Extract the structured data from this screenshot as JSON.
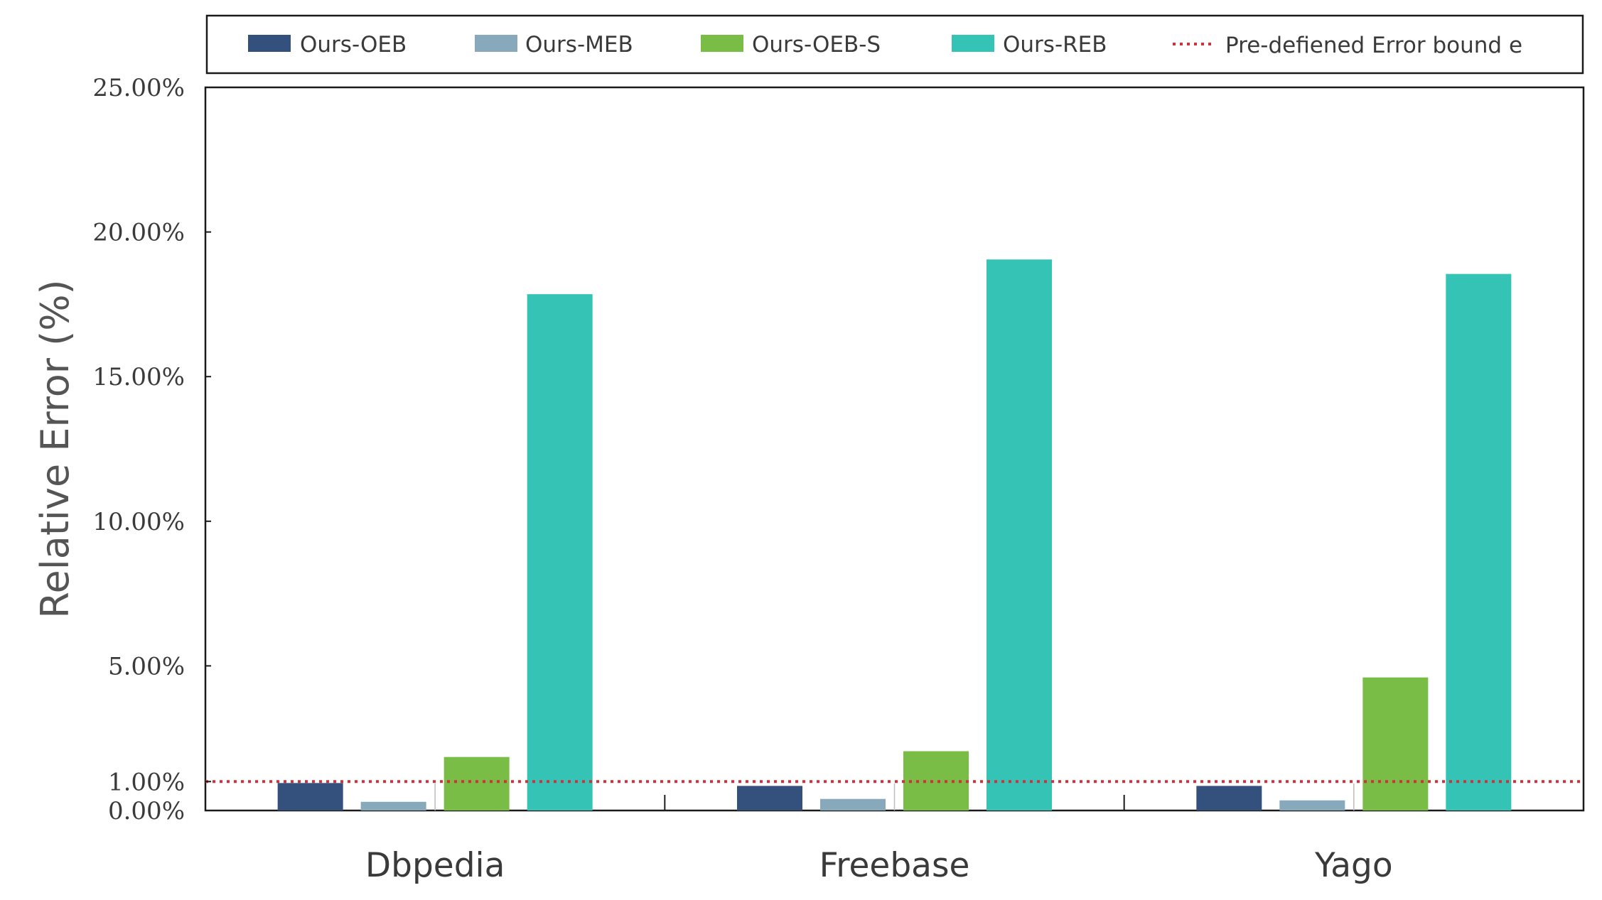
{
  "chart_data": {
    "type": "bar",
    "categories": [
      "Dbpedia",
      "Freebase",
      "Yago"
    ],
    "series": [
      {
        "name": "Ours-OEB",
        "color": "#34507c",
        "values": [
          0.95,
          0.85,
          0.85
        ]
      },
      {
        "name": "Ours-MEB",
        "color": "#88a8bc",
        "values": [
          0.3,
          0.4,
          0.35
        ]
      },
      {
        "name": "Ours-OEB-S",
        "color": "#7abd46",
        "values": [
          1.85,
          2.05,
          4.6
        ]
      },
      {
        "name": "Ours-REB",
        "color": "#35c3b5",
        "values": [
          17.85,
          19.05,
          18.55
        ]
      }
    ],
    "reference_line": {
      "name": "Pre-defiened Error bound e",
      "value": 1.0,
      "color": "#d0323c",
      "style": "dotted"
    },
    "yticks": [
      {
        "value": 0,
        "label": "0.00%"
      },
      {
        "value": 1,
        "label": "1.00%"
      },
      {
        "value": 5,
        "label": "5.00%"
      },
      {
        "value": 10,
        "label": "10.00%"
      },
      {
        "value": 15,
        "label": "15.00%"
      },
      {
        "value": 20,
        "label": "20.00%"
      },
      {
        "value": 25,
        "label": "25.00%"
      }
    ],
    "ylabel": "Relative Error (%)",
    "xlabel": "",
    "title": "",
    "ylim": [
      0,
      25
    ],
    "grid": false,
    "legend_position": "top"
  }
}
